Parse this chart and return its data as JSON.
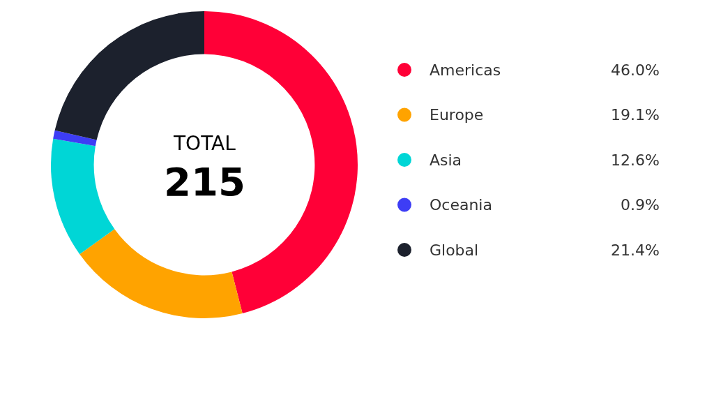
{
  "chart_data": {
    "type": "donut",
    "categories": [
      "Americas",
      "Europe",
      "Asia",
      "Oceania",
      "Global"
    ],
    "values": [
      46.0,
      19.1,
      12.6,
      0.9,
      21.4
    ],
    "value_labels": [
      "46.0%",
      "19.1%",
      "12.6%",
      "0.9%",
      "21.4%"
    ],
    "colors": [
      "#ff0037",
      "#ffa300",
      "#00d6d6",
      "#3d3df5",
      "#1c212d"
    ],
    "annotations": [
      "TOTAL",
      "215"
    ],
    "legend": "right"
  }
}
